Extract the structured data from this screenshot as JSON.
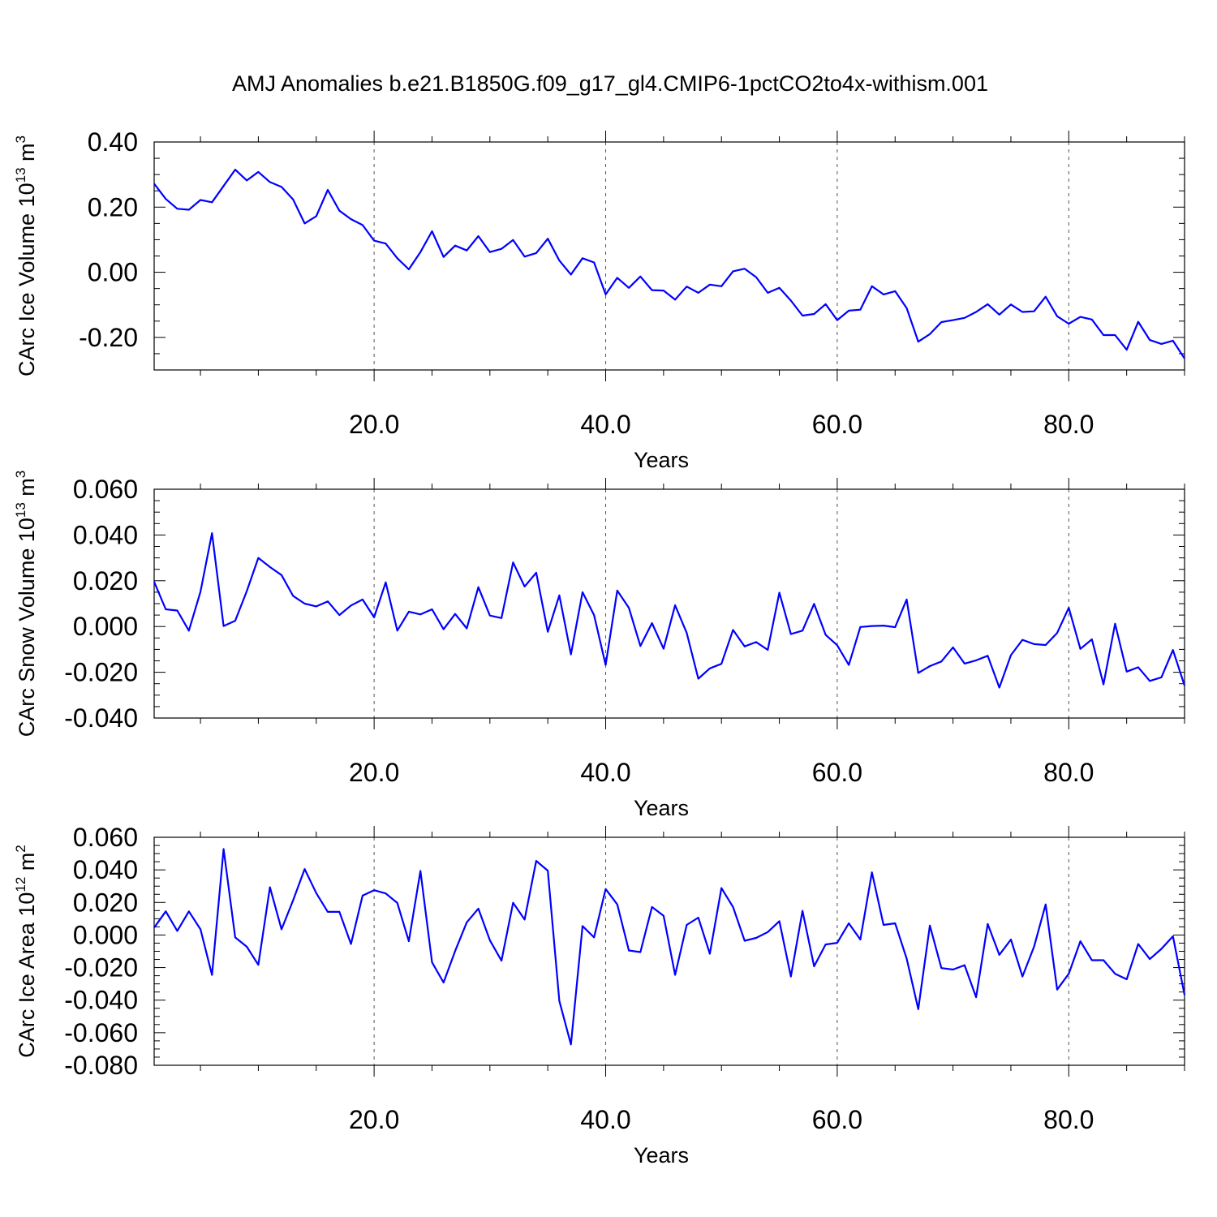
{
  "figure_title": "AMJ Anomalies b.e21.B1850G.f09_g17_gl4.CMIP6-1pctCO2to4x-withism.001",
  "colors": {
    "line": "#0000ff",
    "axis": "#000000",
    "grid": "#555555"
  },
  "chart_data": [
    {
      "type": "line",
      "ylabel": {
        "text": "CArc Ice Volume 10",
        "exp": "13",
        "unit": " m",
        "unit_exp": "3"
      },
      "xlabel": "Years",
      "xlim": [
        1,
        90
      ],
      "ylim": [
        -0.3,
        0.4
      ],
      "yticks": [
        0.4,
        0.2,
        0.0,
        -0.2
      ],
      "ytick_labels": [
        "0.40",
        "0.20",
        "0.00",
        "-0.20"
      ],
      "yminor_step": 0.05,
      "xticks": [
        20,
        40,
        60,
        80
      ],
      "xtick_labels": [
        "20.0",
        "40.0",
        "60.0",
        "80.0"
      ],
      "xminor_step": 5,
      "grid": "x-dashed",
      "x": [
        1,
        2,
        3,
        4,
        5,
        6,
        7,
        8,
        9,
        10,
        11,
        12,
        13,
        14,
        15,
        16,
        17,
        18,
        19,
        20,
        21,
        22,
        23,
        24,
        25,
        26,
        27,
        28,
        29,
        30,
        31,
        32,
        33,
        34,
        35,
        36,
        37,
        38,
        39,
        40,
        41,
        42,
        43,
        44,
        45,
        46,
        47,
        48,
        49,
        50,
        51,
        52,
        53,
        54,
        55,
        56,
        57,
        58,
        59,
        60,
        61,
        62,
        63,
        64,
        65,
        66,
        67,
        68,
        69,
        70,
        71,
        72,
        73,
        74,
        75,
        76,
        77,
        78,
        79,
        80,
        81,
        82,
        83,
        84,
        85,
        86,
        87,
        88,
        89,
        90
      ],
      "values": [
        0.272,
        0.225,
        0.195,
        0.192,
        0.222,
        0.215,
        0.265,
        0.315,
        0.282,
        0.308,
        0.277,
        0.262,
        0.224,
        0.15,
        0.172,
        0.253,
        0.189,
        0.163,
        0.145,
        0.097,
        0.088,
        0.043,
        0.009,
        0.062,
        0.126,
        0.047,
        0.082,
        0.067,
        0.111,
        0.062,
        0.072,
        0.099,
        0.048,
        0.059,
        0.103,
        0.036,
        -0.007,
        0.043,
        0.03,
        -0.068,
        -0.017,
        -0.048,
        -0.013,
        -0.055,
        -0.056,
        -0.084,
        -0.044,
        -0.063,
        -0.038,
        -0.043,
        0.003,
        0.011,
        -0.015,
        -0.063,
        -0.048,
        -0.087,
        -0.133,
        -0.128,
        -0.098,
        -0.147,
        -0.118,
        -0.115,
        -0.043,
        -0.068,
        -0.058,
        -0.11,
        -0.213,
        -0.19,
        -0.153,
        -0.147,
        -0.14,
        -0.122,
        -0.098,
        -0.13,
        -0.099,
        -0.122,
        -0.12,
        -0.075,
        -0.135,
        -0.158,
        -0.137,
        -0.145,
        -0.193,
        -0.193,
        -0.238,
        -0.152,
        -0.208,
        -0.22,
        -0.21,
        -0.265
      ]
    },
    {
      "type": "line",
      "ylabel": {
        "text": "CArc Snow Volume 10",
        "exp": "13",
        "unit": " m",
        "unit_exp": "3"
      },
      "xlabel": "Years",
      "xlim": [
        1,
        90
      ],
      "ylim": [
        -0.04,
        0.06
      ],
      "yticks": [
        0.06,
        0.04,
        0.02,
        0.0,
        -0.02,
        -0.04
      ],
      "ytick_labels": [
        "0.060",
        "0.040",
        "0.020",
        "0.000",
        "-0.020",
        "-0.040"
      ],
      "yminor_step": 0.005,
      "xticks": [
        20,
        40,
        60,
        80
      ],
      "xtick_labels": [
        "20.0",
        "40.0",
        "60.0",
        "80.0"
      ],
      "xminor_step": 5,
      "grid": "x-dashed",
      "x": [
        1,
        2,
        3,
        4,
        5,
        6,
        7,
        8,
        9,
        10,
        11,
        12,
        13,
        14,
        15,
        16,
        17,
        18,
        19,
        20,
        21,
        22,
        23,
        24,
        25,
        26,
        27,
        28,
        29,
        30,
        31,
        32,
        33,
        34,
        35,
        36,
        37,
        38,
        39,
        40,
        41,
        42,
        43,
        44,
        45,
        46,
        47,
        48,
        49,
        50,
        51,
        52,
        53,
        54,
        55,
        56,
        57,
        58,
        59,
        60,
        61,
        62,
        63,
        64,
        65,
        66,
        67,
        68,
        69,
        70,
        71,
        72,
        73,
        74,
        75,
        76,
        77,
        78,
        79,
        80,
        81,
        82,
        83,
        84,
        85,
        86,
        87,
        88,
        89,
        90
      ],
      "values": [
        0.0195,
        0.0075,
        0.007,
        -0.0018,
        0.0152,
        0.0408,
        0.0002,
        0.0025,
        0.0155,
        0.03,
        0.026,
        0.0225,
        0.0134,
        0.01,
        0.0088,
        0.011,
        0.005,
        0.0092,
        0.0118,
        0.004,
        0.0193,
        -0.0018,
        0.0065,
        0.0053,
        0.0075,
        -0.0012,
        0.0055,
        -0.0008,
        0.0172,
        0.0048,
        0.0037,
        0.028,
        0.0175,
        0.0235,
        -0.0023,
        0.0136,
        -0.0122,
        0.015,
        0.005,
        -0.0168,
        0.0157,
        0.0082,
        -0.0085,
        0.0015,
        -0.0097,
        0.0093,
        -0.0028,
        -0.0228,
        -0.0183,
        -0.0163,
        -0.0015,
        -0.0087,
        -0.0068,
        -0.0102,
        0.0148,
        -0.0033,
        -0.0018,
        0.0099,
        -0.0036,
        -0.0082,
        -0.0168,
        -0.0002,
        0.0002,
        0.0004,
        -0.0003,
        0.0118,
        -0.0203,
        -0.0173,
        -0.0153,
        -0.0091,
        -0.0162,
        -0.0148,
        -0.0128,
        -0.0267,
        -0.0125,
        -0.0058,
        -0.0077,
        -0.0081,
        -0.0028,
        0.0082,
        -0.0098,
        -0.0056,
        -0.0253,
        0.0012,
        -0.0197,
        -0.0178,
        -0.0238,
        -0.0222,
        -0.0103,
        -0.0258
      ]
    },
    {
      "type": "line",
      "ylabel": {
        "text": "CArc Ice Area 10",
        "exp": "12",
        "unit": " m",
        "unit_exp": "2"
      },
      "xlabel": "Years",
      "xlim": [
        1,
        90
      ],
      "ylim": [
        -0.08,
        0.06
      ],
      "yticks": [
        0.06,
        0.04,
        0.02,
        0.0,
        -0.02,
        -0.04,
        -0.06,
        -0.08
      ],
      "ytick_labels": [
        "0.060",
        "0.040",
        "0.020",
        "0.000",
        "-0.020",
        "-0.040",
        "-0.060",
        "-0.080"
      ],
      "yminor_step": 0.005,
      "xticks": [
        20,
        40,
        60,
        80
      ],
      "xtick_labels": [
        "20.0",
        "40.0",
        "60.0",
        "80.0"
      ],
      "xminor_step": 5,
      "grid": "x-dashed",
      "x": [
        1,
        2,
        3,
        4,
        5,
        6,
        7,
        8,
        9,
        10,
        11,
        12,
        13,
        14,
        15,
        16,
        17,
        18,
        19,
        20,
        21,
        22,
        23,
        24,
        25,
        26,
        27,
        28,
        29,
        30,
        31,
        32,
        33,
        34,
        35,
        36,
        37,
        38,
        39,
        40,
        41,
        42,
        43,
        44,
        45,
        46,
        47,
        48,
        49,
        50,
        51,
        52,
        53,
        54,
        55,
        56,
        57,
        58,
        59,
        60,
        61,
        62,
        63,
        64,
        65,
        66,
        67,
        68,
        69,
        70,
        71,
        72,
        73,
        74,
        75,
        76,
        77,
        78,
        79,
        80,
        81,
        82,
        83,
        84,
        85,
        86,
        87,
        88,
        89,
        90
      ],
      "values": [
        0.0045,
        0.0145,
        0.0025,
        0.0145,
        0.0035,
        -0.0245,
        0.0528,
        -0.0015,
        -0.0072,
        -0.0183,
        0.0293,
        0.0035,
        0.0212,
        0.0405,
        0.0257,
        0.0142,
        0.0142,
        -0.0055,
        0.0242,
        0.0275,
        0.0255,
        0.0197,
        -0.0038,
        0.0393,
        -0.0168,
        -0.0292,
        -0.0098,
        0.0078,
        0.0162,
        -0.0032,
        -0.0158,
        0.0198,
        0.0095,
        0.0455,
        0.0395,
        -0.0405,
        -0.0672,
        0.0055,
        -0.0015,
        0.0282,
        0.0188,
        -0.0095,
        -0.0105,
        0.0172,
        0.0118,
        -0.0245,
        0.0062,
        0.0107,
        -0.0115,
        0.0288,
        0.0172,
        -0.0035,
        -0.0018,
        0.0018,
        0.0085,
        -0.0255,
        0.0148,
        -0.0192,
        -0.0058,
        -0.0048,
        0.0072,
        -0.0028,
        0.0385,
        0.0062,
        0.0072,
        -0.0145,
        -0.0455,
        0.0058,
        -0.0203,
        -0.0212,
        -0.0185,
        -0.0382,
        0.0068,
        -0.0122,
        -0.0028,
        -0.0255,
        -0.0072,
        0.0188,
        -0.0335,
        -0.0238,
        -0.0038,
        -0.0155,
        -0.0155,
        -0.0238,
        -0.0272,
        -0.0055,
        -0.0148,
        -0.0085,
        -0.0008,
        -0.0368
      ]
    }
  ]
}
